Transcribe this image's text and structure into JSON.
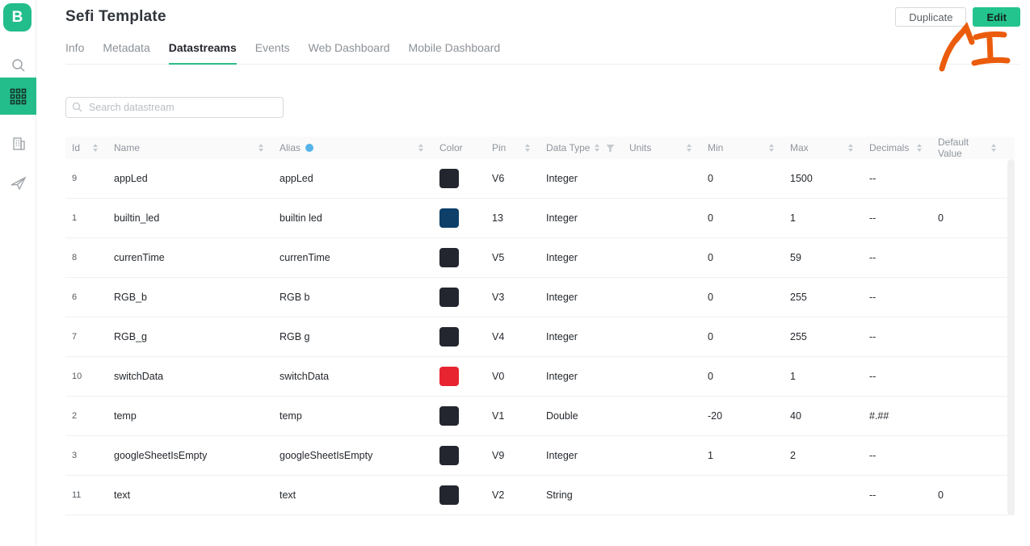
{
  "colors": {
    "accent": "#23bd8b",
    "edit_button": "#23c48e",
    "annotation_orange": "#ea5c0c",
    "swatch_dark": "#23262e",
    "swatch_blue": "#0d3f69",
    "swatch_red": "#e72430",
    "alias_dot_blue": "#56b3e9"
  },
  "sidebar": {
    "logo_letter": "B",
    "items": [
      {
        "icon": "search-icon",
        "active": false
      },
      {
        "icon": "grid-icon",
        "active": true
      },
      {
        "icon": "building-icon",
        "active": false
      },
      {
        "icon": "paper-plane-icon",
        "active": false
      }
    ]
  },
  "header": {
    "title": "Sefi Template",
    "duplicate_label": "Duplicate",
    "edit_label": "Edit"
  },
  "tabs": [
    {
      "label": "Info",
      "active": false
    },
    {
      "label": "Metadata",
      "active": false
    },
    {
      "label": "Datastreams",
      "active": true
    },
    {
      "label": "Events",
      "active": false
    },
    {
      "label": "Web Dashboard",
      "active": false
    },
    {
      "label": "Mobile Dashboard",
      "active": false
    }
  ],
  "search": {
    "placeholder": "Search datastream"
  },
  "table": {
    "columns": [
      {
        "label": "Id",
        "sortable": true
      },
      {
        "label": "Name",
        "sortable": true
      },
      {
        "label": "Alias",
        "sortable": true,
        "info_dot": true
      },
      {
        "label": "Color",
        "sortable": false
      },
      {
        "label": "Pin",
        "sortable": true
      },
      {
        "label": "Data Type",
        "sortable": true,
        "filter": true
      },
      {
        "label": "Units",
        "sortable": true
      },
      {
        "label": "Min",
        "sortable": true
      },
      {
        "label": "Max",
        "sortable": true
      },
      {
        "label": "Decimals",
        "sortable": true
      },
      {
        "label": "Default Value",
        "sortable": true
      }
    ],
    "rows": [
      {
        "id": "9",
        "name": "appLed",
        "alias": "appLed",
        "color": "#23262e",
        "pin": "V6",
        "data_type": "Integer",
        "units": "",
        "min": "0",
        "max": "1500",
        "decimals": "--",
        "default_value": ""
      },
      {
        "id": "1",
        "name": "builtin_led",
        "alias": "builtin led",
        "color": "#0d3f69",
        "pin": "13",
        "data_type": "Integer",
        "units": "",
        "min": "0",
        "max": "1",
        "decimals": "--",
        "default_value": "0"
      },
      {
        "id": "8",
        "name": "currenTime",
        "alias": "currenTime",
        "color": "#23262e",
        "pin": "V5",
        "data_type": "Integer",
        "units": "",
        "min": "0",
        "max": "59",
        "decimals": "--",
        "default_value": ""
      },
      {
        "id": "6",
        "name": "RGB_b",
        "alias": "RGB b",
        "color": "#23262e",
        "pin": "V3",
        "data_type": "Integer",
        "units": "",
        "min": "0",
        "max": "255",
        "decimals": "--",
        "default_value": ""
      },
      {
        "id": "7",
        "name": "RGB_g",
        "alias": "RGB g",
        "color": "#23262e",
        "pin": "V4",
        "data_type": "Integer",
        "units": "",
        "min": "0",
        "max": "255",
        "decimals": "--",
        "default_value": ""
      },
      {
        "id": "10",
        "name": "switchData",
        "alias": "switchData",
        "color": "#e72430",
        "pin": "V0",
        "data_type": "Integer",
        "units": "",
        "min": "0",
        "max": "1",
        "decimals": "--",
        "default_value": ""
      },
      {
        "id": "2",
        "name": "temp",
        "alias": "temp",
        "color": "#23262e",
        "pin": "V1",
        "data_type": "Double",
        "units": "",
        "min": "-20",
        "max": "40",
        "decimals": "#.##",
        "default_value": ""
      },
      {
        "id": "3",
        "name": "googleSheetIsEmpty",
        "alias": "googleSheetIsEmpty",
        "color": "#23262e",
        "pin": "V9",
        "data_type": "Integer",
        "units": "",
        "min": "1",
        "max": "2",
        "decimals": "--",
        "default_value": ""
      },
      {
        "id": "11",
        "name": "text",
        "alias": "text",
        "color": "#23262e",
        "pin": "V2",
        "data_type": "String",
        "units": "",
        "min": "",
        "max": "",
        "decimals": "--",
        "default_value": "0"
      }
    ]
  },
  "annotation": {
    "description": "hand-drawn orange arrow pointing up-right at the Edit button, with a hand-drawn capital letter I beside it"
  }
}
